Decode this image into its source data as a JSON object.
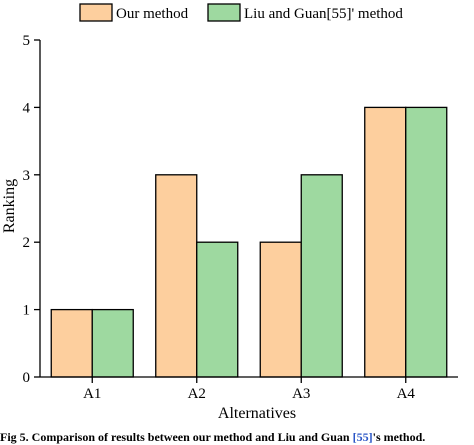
{
  "chart_data": {
    "type": "bar",
    "categories": [
      "A1",
      "A2",
      "A3",
      "A4"
    ],
    "series": [
      {
        "name": "Our method",
        "values": [
          1,
          3,
          2,
          4
        ],
        "color": "#fdcf9e"
      },
      {
        "name": "Liu and Guan[55]' method",
        "values": [
          1,
          2,
          3,
          4
        ],
        "color": "#9ed9a0"
      }
    ],
    "xlabel": "Alternatives",
    "ylabel": "Ranking",
    "ylim": [
      0,
      5
    ],
    "yticks": [
      "0",
      "1",
      "2",
      "3",
      "4",
      "5"
    ],
    "grid": false,
    "legend_position": "top"
  },
  "caption": {
    "prefix": "Fig 5. Comparison of results between our method and Liu and Guan ",
    "ref": "[55]",
    "suffix": "'s method."
  }
}
